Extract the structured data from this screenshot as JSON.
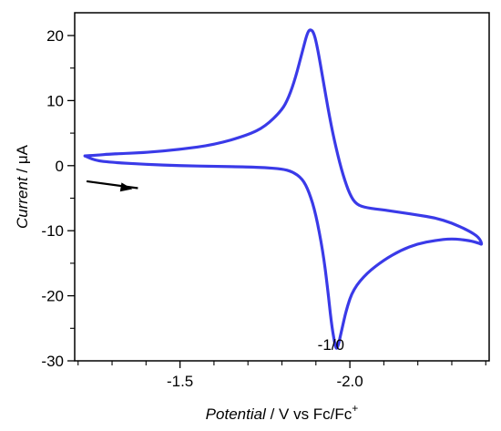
{
  "chart_data": {
    "type": "line",
    "title": "",
    "xlabel_italic": "Potential",
    "xlabel_rest": " / V vs Fc/Fc",
    "xlabel_sup": "+",
    "ylabel_italic": "Current",
    "ylabel_rest": " / μA",
    "xlim": [
      -1.19,
      -2.41
    ],
    "ylim": [
      -30,
      23.5
    ],
    "x_ticks": [
      -1.5,
      -2.0
    ],
    "x_tick_labels": [
      "-1.5",
      "-2.0"
    ],
    "x_minor_ticks": [
      -1.2,
      -1.3,
      -1.4,
      -1.6,
      -1.7,
      -1.8,
      -1.9,
      -2.1,
      -2.2,
      -2.3,
      -2.4
    ],
    "y_ticks": [
      20,
      10,
      0,
      -10,
      -20,
      -30
    ],
    "y_tick_labels": [
      "20",
      "10",
      "0",
      "-10",
      "-20",
      "-30"
    ],
    "y_minor_ticks": [
      15,
      5,
      -5,
      -15,
      -25
    ],
    "grid": false,
    "series": [
      {
        "color": "#3a3ae8",
        "points": [
          [
            -1.22,
            1.5
          ],
          [
            -1.25,
            0.8
          ],
          [
            -1.3,
            0.5
          ],
          [
            -1.4,
            0.2
          ],
          [
            -1.5,
            0.0
          ],
          [
            -1.6,
            -0.1
          ],
          [
            -1.7,
            -0.2
          ],
          [
            -1.75,
            -0.3
          ],
          [
            -1.8,
            -0.5
          ],
          [
            -1.83,
            -0.9
          ],
          [
            -1.86,
            -2.0
          ],
          [
            -1.88,
            -4.0
          ],
          [
            -1.9,
            -7.5
          ],
          [
            -1.92,
            -13.0
          ],
          [
            -1.935,
            -19.0
          ],
          [
            -1.945,
            -24.0
          ],
          [
            -1.955,
            -27.2
          ],
          [
            -1.96,
            -28.2
          ],
          [
            -1.965,
            -27.8
          ],
          [
            -1.975,
            -25.5
          ],
          [
            -1.99,
            -22.0
          ],
          [
            -2.01,
            -19.0
          ],
          [
            -2.05,
            -16.5
          ],
          [
            -2.1,
            -14.5
          ],
          [
            -2.15,
            -13.0
          ],
          [
            -2.2,
            -12.0
          ],
          [
            -2.25,
            -11.5
          ],
          [
            -2.3,
            -11.2
          ],
          [
            -2.35,
            -11.5
          ],
          [
            -2.38,
            -11.9
          ],
          [
            -2.39,
            -12.2
          ],
          [
            -2.38,
            -11.0
          ],
          [
            -2.35,
            -10.0
          ],
          [
            -2.3,
            -8.8
          ],
          [
            -2.25,
            -8.0
          ],
          [
            -2.2,
            -7.6
          ],
          [
            -2.15,
            -7.2
          ],
          [
            -2.1,
            -6.8
          ],
          [
            -2.05,
            -6.5
          ],
          [
            -2.02,
            -6.0
          ],
          [
            -2.0,
            -4.5
          ],
          [
            -1.98,
            -1.5
          ],
          [
            -1.96,
            2.5
          ],
          [
            -1.94,
            7.5
          ],
          [
            -1.92,
            13.5
          ],
          [
            -1.905,
            18.0
          ],
          [
            -1.895,
            20.3
          ],
          [
            -1.885,
            21.0
          ],
          [
            -1.875,
            20.5
          ],
          [
            -1.86,
            17.5
          ],
          [
            -1.84,
            13.5
          ],
          [
            -1.82,
            10.5
          ],
          [
            -1.8,
            8.5
          ],
          [
            -1.75,
            6.0
          ],
          [
            -1.7,
            4.7
          ],
          [
            -1.6,
            3.2
          ],
          [
            -1.5,
            2.5
          ],
          [
            -1.4,
            2.0
          ],
          [
            -1.3,
            1.8
          ],
          [
            -1.25,
            1.6
          ],
          [
            -1.22,
            1.5
          ]
        ]
      }
    ],
    "arrow": {
      "from": [
        -1.225,
        -2.4
      ],
      "to": [
        -1.36,
        -3.6
      ]
    },
    "annotations": [
      {
        "text": "-1/0",
        "x": -1.905,
        "y": -27.5
      }
    ]
  }
}
